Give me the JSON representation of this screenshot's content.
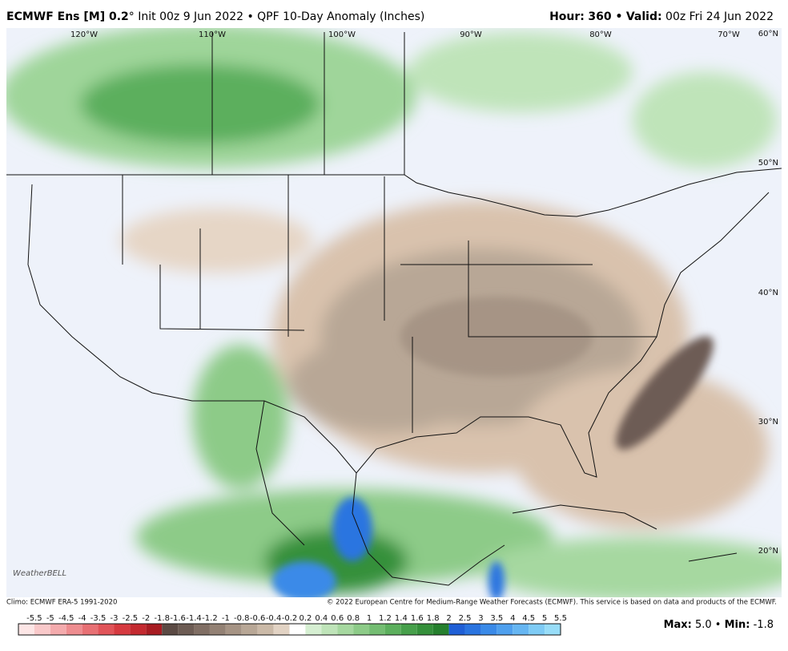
{
  "header": {
    "title_bold": "ECMWF Ens [M] 0.2",
    "title_rest": "° Init 00z 9 Jun 2022 • QPF 10-Day Anomaly (Inches)",
    "hour_label": "Hour:",
    "hour_value": "360 •",
    "valid_label": "Valid:",
    "valid_value": "00z Fri 24 Jun 2022"
  },
  "map": {
    "lon_labels": [
      "120°W",
      "110°W",
      "100°W",
      "90°W",
      "80°W",
      "70°W"
    ],
    "lat_labels": [
      "60°N",
      "50°N",
      "40°N",
      "30°N",
      "20°N"
    ],
    "logo": "WeatherBELL"
  },
  "footer": {
    "climo": "Climo: ECMWF ERA-5 1991-2020",
    "copyright": "© 2022 European Centre for Medium-Range Weather Forecasts (ECMWF). This service is based on data and products of the ECMWF.",
    "max_label": "Max:",
    "max_value": "5.0 •",
    "min_label": "Min:",
    "min_value": "-1.8"
  },
  "colorbar": {
    "labels": [
      "-5.5",
      "-5",
      "-4.5",
      "-4",
      "-3.5",
      "-3",
      "-2.5",
      "-2",
      "-1.8",
      "-1.6",
      "-1.4",
      "-1.2",
      "-1",
      "-0.8",
      "-0.6",
      "-0.4",
      "-0.2",
      "0.2",
      "0.4",
      "0.6",
      "0.8",
      "1",
      "1.2",
      "1.4",
      "1.6",
      "1.8",
      "2",
      "2.5",
      "3",
      "3.5",
      "4",
      "4.5",
      "5",
      "5.5"
    ],
    "colors": [
      "#fde6e6",
      "#f9c9ca",
      "#f4abad",
      "#ee8d90",
      "#e87074",
      "#e15459",
      "#d63a40",
      "#c42a30",
      "#a81c22",
      "#5b4a44",
      "#6d5c54",
      "#806e64",
      "#938174",
      "#a69485",
      "#b8a796",
      "#cbbaa8",
      "#e2d3c4",
      "#ffffff",
      "#d6efd2",
      "#bfe4b9",
      "#a6d8a0",
      "#8dcb88",
      "#74bd72",
      "#5caf5d",
      "#47a04b",
      "#35903b",
      "#26802e",
      "#1f5fd6",
      "#2a74e0",
      "#3a8ae8",
      "#4fa0ee",
      "#66b6f2",
      "#7ecbf5",
      "#98ddf8"
    ]
  }
}
